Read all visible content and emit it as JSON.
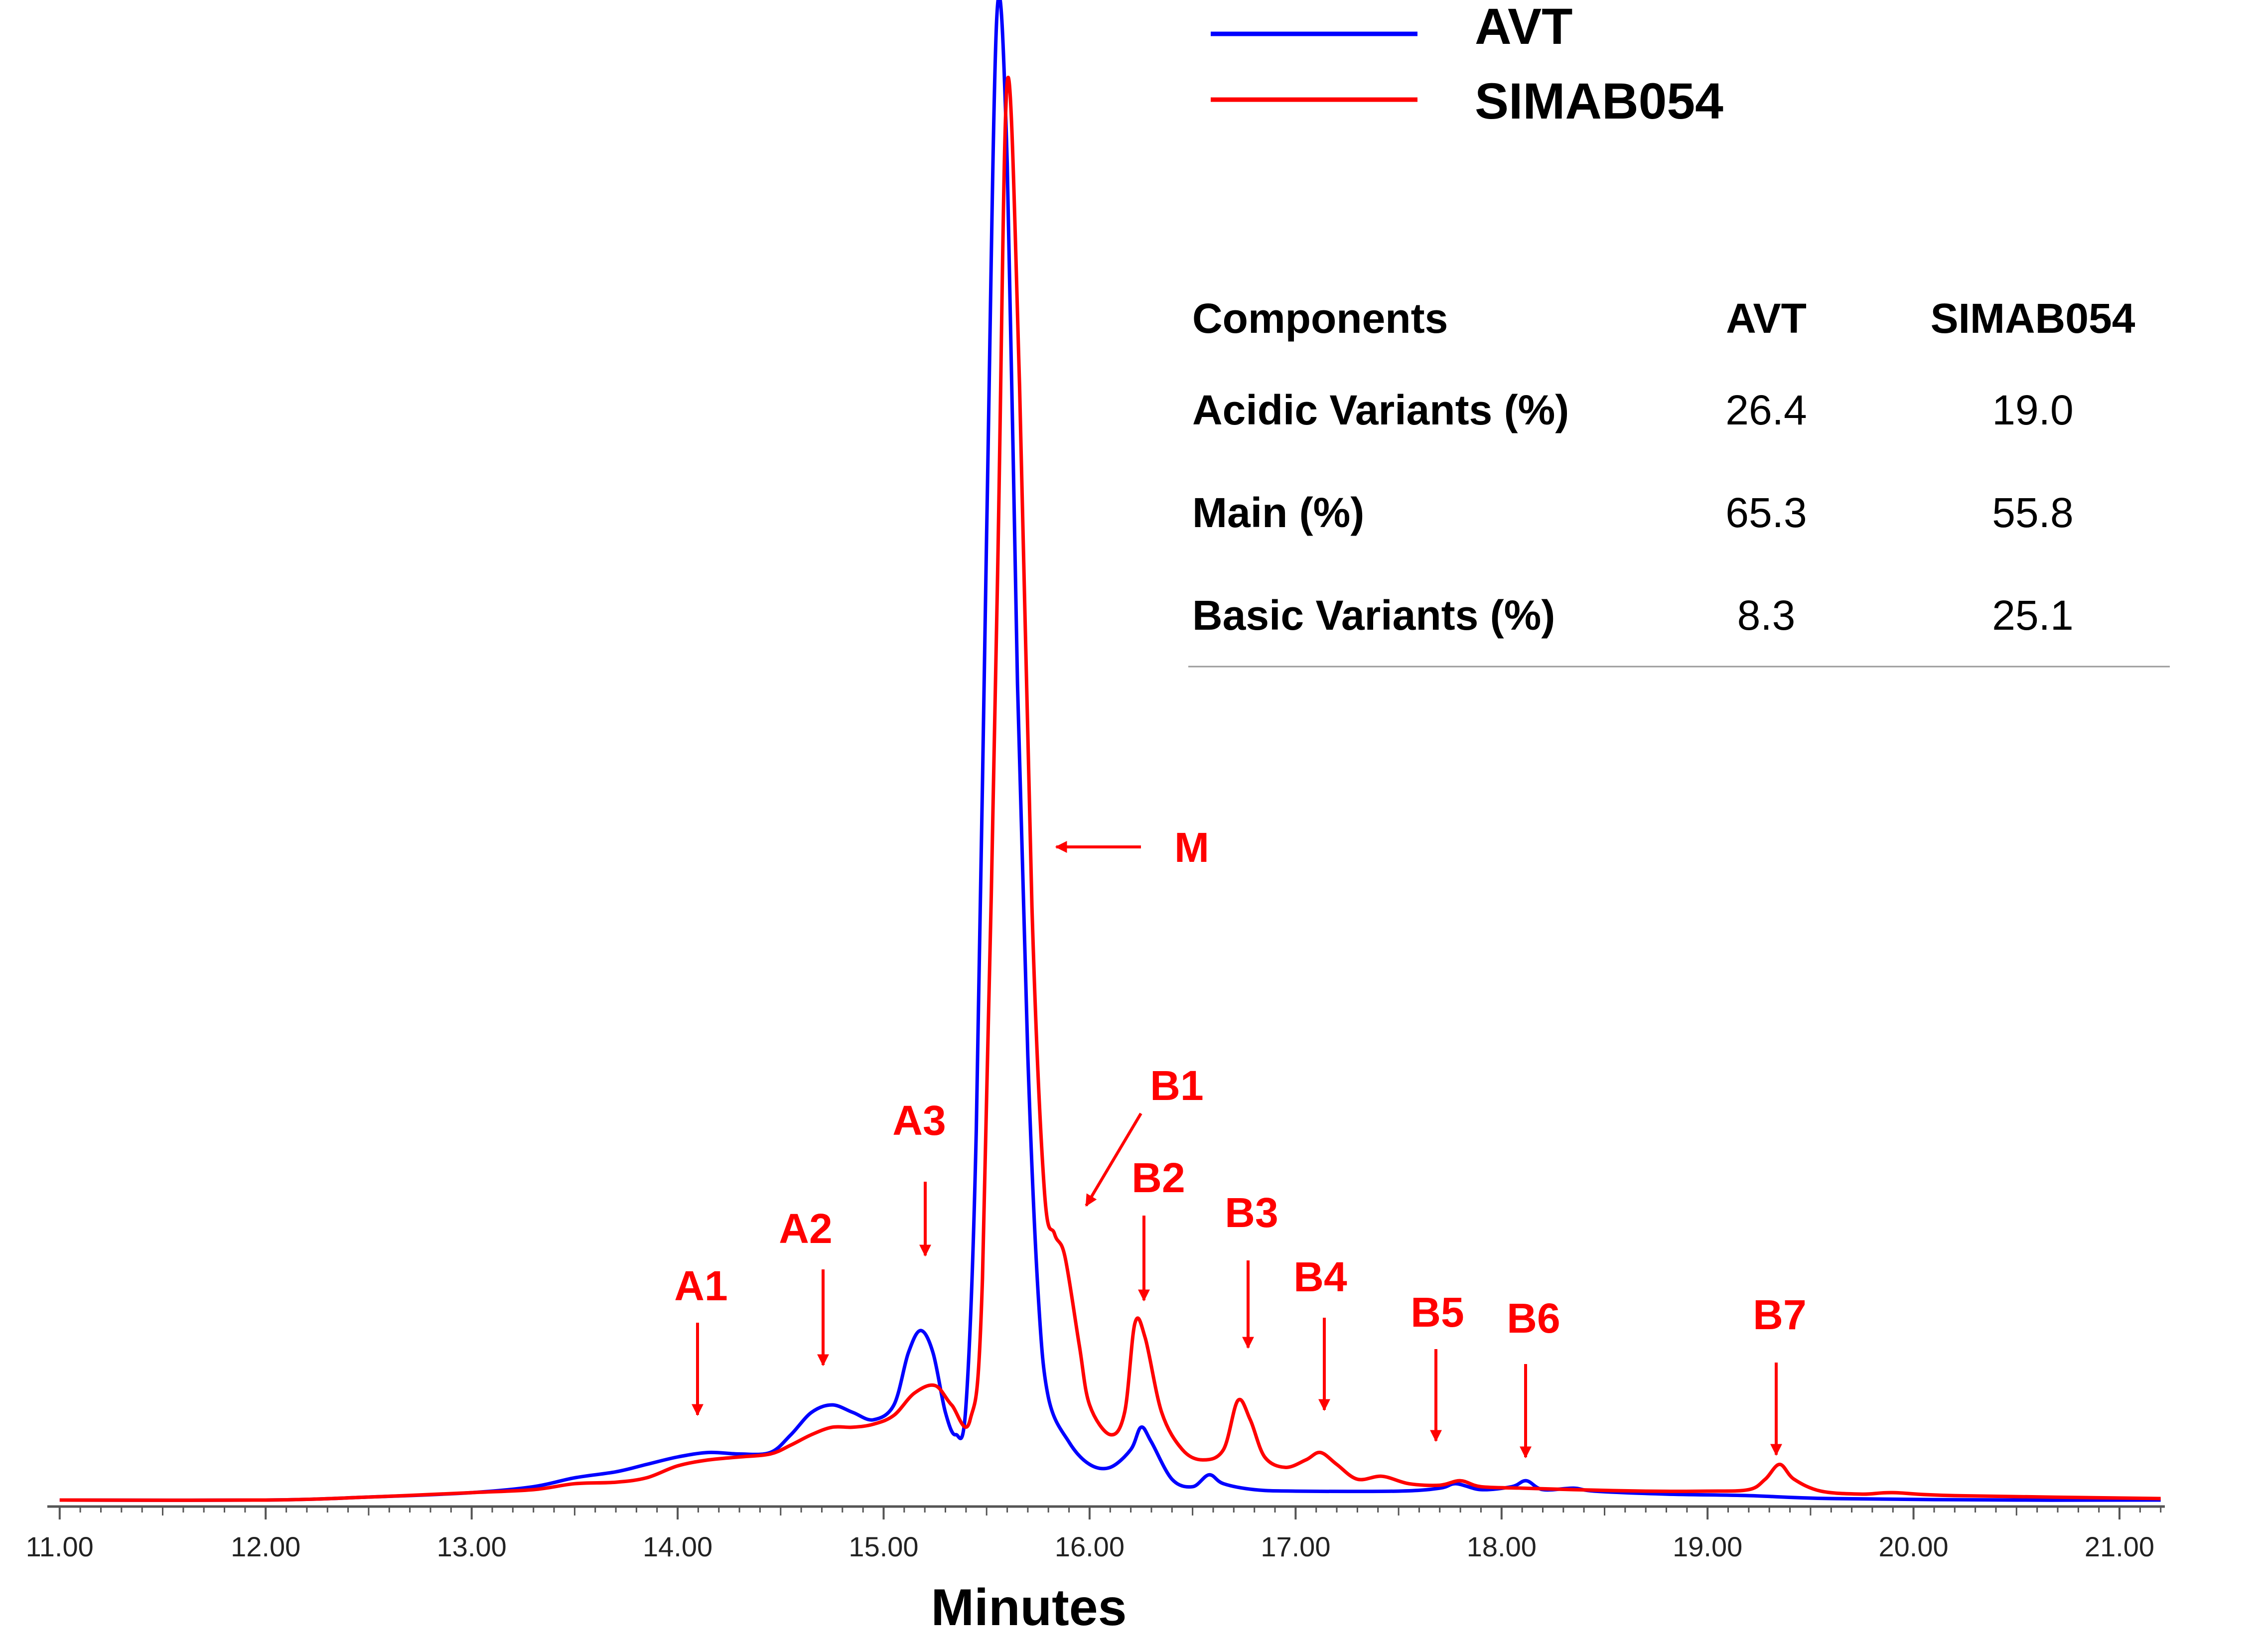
{
  "chart_data": {
    "type": "line",
    "xlabel": "Minutes",
    "xlim": [
      10.94,
      21.22
    ],
    "ylim": [
      0,
      100
    ],
    "x_ticks": [
      "11.00",
      "12.00",
      "13.00",
      "14.00",
      "15.00",
      "16.00",
      "17.00",
      "18.00",
      "19.00",
      "20.00",
      "21.00"
    ],
    "series": [
      {
        "name": "AVT",
        "color": "#0000ff",
        "points": [
          [
            11.0,
            0.1
          ],
          [
            12.0,
            0.1
          ],
          [
            12.5,
            0.3
          ],
          [
            13.0,
            0.6
          ],
          [
            13.3,
            1.0
          ],
          [
            13.5,
            1.6
          ],
          [
            13.7,
            2.0
          ],
          [
            13.85,
            2.5
          ],
          [
            14.0,
            3.0
          ],
          [
            14.15,
            3.3
          ],
          [
            14.3,
            3.2
          ],
          [
            14.45,
            3.3
          ],
          [
            14.55,
            4.5
          ],
          [
            14.65,
            6.0
          ],
          [
            14.75,
            6.5
          ],
          [
            14.85,
            6.0
          ],
          [
            14.95,
            5.5
          ],
          [
            15.05,
            6.5
          ],
          [
            15.12,
            10.0
          ],
          [
            15.18,
            11.5
          ],
          [
            15.24,
            10.0
          ],
          [
            15.3,
            6.0
          ],
          [
            15.35,
            4.5
          ],
          [
            15.4,
            6.5
          ],
          [
            15.45,
            25.0
          ],
          [
            15.5,
            65.0
          ],
          [
            15.55,
            100.0
          ],
          [
            15.6,
            90.0
          ],
          [
            15.65,
            55.0
          ],
          [
            15.7,
            30.0
          ],
          [
            15.75,
            14.0
          ],
          [
            15.8,
            7.0
          ],
          [
            15.9,
            4.0
          ],
          [
            16.0,
            2.5
          ],
          [
            16.1,
            2.3
          ],
          [
            16.2,
            3.5
          ],
          [
            16.25,
            5.0
          ],
          [
            16.3,
            4.0
          ],
          [
            16.4,
            1.5
          ],
          [
            16.5,
            1.0
          ],
          [
            16.58,
            1.8
          ],
          [
            16.65,
            1.2
          ],
          [
            16.8,
            0.8
          ],
          [
            17.0,
            0.7
          ],
          [
            17.5,
            0.7
          ],
          [
            17.7,
            0.9
          ],
          [
            17.78,
            1.2
          ],
          [
            17.9,
            0.8
          ],
          [
            18.05,
            1.0
          ],
          [
            18.12,
            1.4
          ],
          [
            18.2,
            0.8
          ],
          [
            18.35,
            0.9
          ],
          [
            18.45,
            0.7
          ],
          [
            18.8,
            0.5
          ],
          [
            19.2,
            0.4
          ],
          [
            19.6,
            0.2
          ],
          [
            20.5,
            0.1
          ],
          [
            21.2,
            0.1
          ]
        ]
      },
      {
        "name": "SIMAB054",
        "color": "#ff0000",
        "points": [
          [
            11.0,
            0.1
          ],
          [
            12.0,
            0.1
          ],
          [
            12.5,
            0.3
          ],
          [
            13.0,
            0.6
          ],
          [
            13.3,
            0.8
          ],
          [
            13.5,
            1.2
          ],
          [
            13.7,
            1.3
          ],
          [
            13.85,
            1.6
          ],
          [
            14.0,
            2.4
          ],
          [
            14.15,
            2.8
          ],
          [
            14.3,
            3.0
          ],
          [
            14.45,
            3.2
          ],
          [
            14.55,
            3.8
          ],
          [
            14.65,
            4.5
          ],
          [
            14.75,
            5.0
          ],
          [
            14.85,
            5.0
          ],
          [
            14.95,
            5.2
          ],
          [
            15.05,
            5.8
          ],
          [
            15.15,
            7.3
          ],
          [
            15.25,
            7.8
          ],
          [
            15.33,
            6.5
          ],
          [
            15.42,
            5.5
          ],
          [
            15.48,
            15.0
          ],
          [
            15.55,
            60.0
          ],
          [
            15.6,
            95.5
          ],
          [
            15.66,
            75.0
          ],
          [
            15.72,
            40.0
          ],
          [
            15.78,
            21.0
          ],
          [
            15.83,
            18.0
          ],
          [
            15.88,
            16.5
          ],
          [
            15.95,
            10.5
          ],
          [
            16.0,
            6.5
          ],
          [
            16.1,
            4.5
          ],
          [
            16.17,
            6.0
          ],
          [
            16.22,
            12.0
          ],
          [
            16.27,
            11.0
          ],
          [
            16.35,
            6.0
          ],
          [
            16.45,
            3.5
          ],
          [
            16.55,
            2.8
          ],
          [
            16.65,
            3.5
          ],
          [
            16.72,
            6.8
          ],
          [
            16.78,
            5.5
          ],
          [
            16.85,
            3.0
          ],
          [
            16.95,
            2.3
          ],
          [
            17.05,
            2.8
          ],
          [
            17.12,
            3.3
          ],
          [
            17.2,
            2.5
          ],
          [
            17.3,
            1.5
          ],
          [
            17.42,
            1.7
          ],
          [
            17.55,
            1.2
          ],
          [
            17.7,
            1.1
          ],
          [
            17.8,
            1.4
          ],
          [
            17.9,
            1.0
          ],
          [
            18.1,
            0.9
          ],
          [
            18.35,
            0.8
          ],
          [
            18.7,
            0.7
          ],
          [
            19.0,
            0.7
          ],
          [
            19.2,
            0.8
          ],
          [
            19.28,
            1.5
          ],
          [
            19.35,
            2.5
          ],
          [
            19.42,
            1.5
          ],
          [
            19.55,
            0.7
          ],
          [
            19.75,
            0.5
          ],
          [
            19.9,
            0.6
          ],
          [
            20.2,
            0.4
          ],
          [
            21.2,
            0.2
          ]
        ]
      }
    ],
    "annotations": [
      {
        "label": "A1",
        "x": 14.08
      },
      {
        "label": "A2",
        "x": 14.68
      },
      {
        "label": "A3",
        "x": 15.18
      },
      {
        "label": "M",
        "x": 15.8
      },
      {
        "label": "B1",
        "x": 15.86
      },
      {
        "label": "B2",
        "x": 16.22
      },
      {
        "label": "B3",
        "x": 16.72
      },
      {
        "label": "B4",
        "x": 17.11
      },
      {
        "label": "B5",
        "x": 17.7
      },
      {
        "label": "B6",
        "x": 18.14
      },
      {
        "label": "B7",
        "x": 19.35
      }
    ],
    "annotation_color": "#ff0000",
    "legend": {
      "position": "top-right",
      "entries": [
        "AVT",
        "SIMAB054"
      ]
    }
  },
  "table": {
    "headers": [
      "Components",
      "AVT",
      "SIMAB054"
    ],
    "rows": [
      [
        "Acidic Variants (%)",
        "26.4",
        "19.0"
      ],
      [
        "Main (%)",
        "65.3",
        "55.8"
      ],
      [
        "Basic Variants (%)",
        "8.3",
        "25.1"
      ]
    ]
  }
}
